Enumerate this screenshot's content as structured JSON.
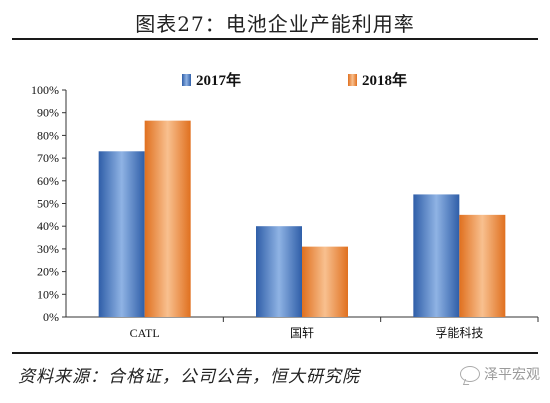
{
  "header": {
    "title": "图表27：电池企业产能利用率"
  },
  "footer": {
    "source": "资料来源：合格证，公司公告，恒大研究院"
  },
  "watermark": {
    "text": "泽平宏观",
    "icon": "wechat-bubble-icon"
  },
  "colors": {
    "series_2017": "#4a7cc6",
    "series_2018": "#ee8a3c",
    "axis": "#333333"
  },
  "chart_data": {
    "type": "bar",
    "title": "电池企业产能利用率",
    "categories": [
      "CATL",
      "国轩",
      "孚能科技"
    ],
    "series": [
      {
        "name": "2017年",
        "values": [
          0.73,
          0.4,
          0.54
        ]
      },
      {
        "name": "2018年",
        "values": [
          0.865,
          0.31,
          0.45
        ]
      }
    ],
    "ylim": [
      0,
      1
    ],
    "yticks": [
      "0%",
      "10%",
      "20%",
      "30%",
      "40%",
      "50%",
      "60%",
      "70%",
      "80%",
      "90%",
      "100%"
    ],
    "legend": "top-center",
    "grid": false
  }
}
